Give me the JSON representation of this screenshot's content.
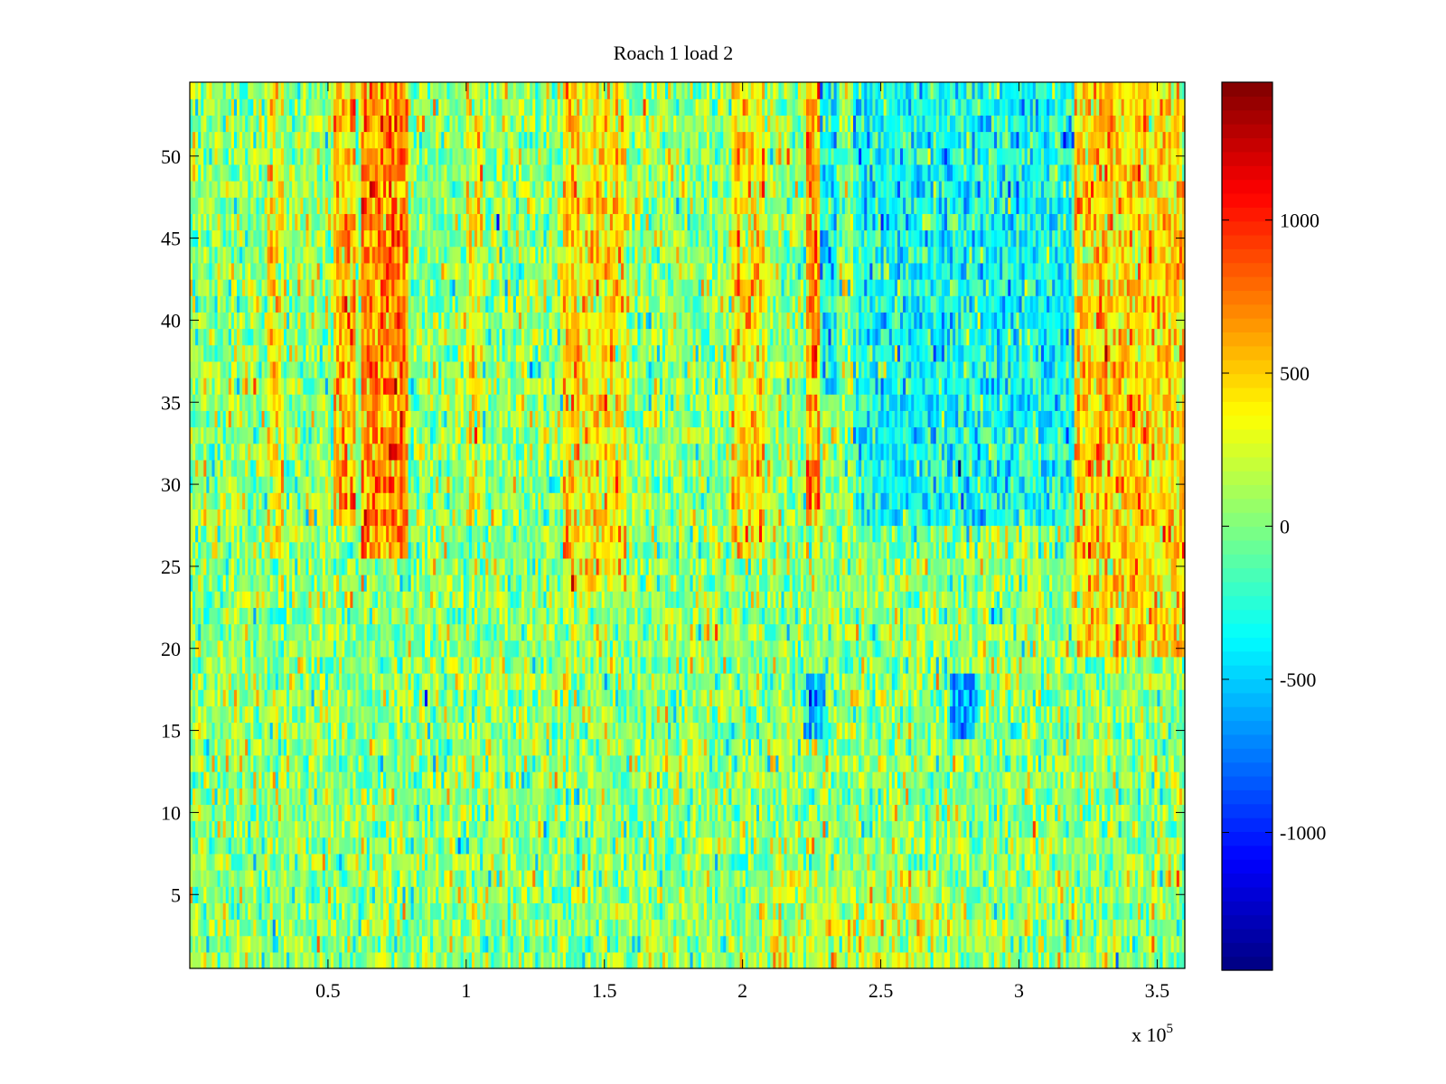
{
  "chart_data": {
    "type": "heatmap",
    "title": "Roach 1 load 2",
    "xlabel": "",
    "ylabel": "",
    "x_multiplier": "x 10",
    "x_multiplier_exponent": "5",
    "xlim": [
      0,
      360000
    ],
    "ylim": [
      0.5,
      54.5
    ],
    "x_ticks": [
      {
        "value": 50000,
        "label": "0.5"
      },
      {
        "value": 100000,
        "label": "1"
      },
      {
        "value": 150000,
        "label": "1.5"
      },
      {
        "value": 200000,
        "label": "2"
      },
      {
        "value": 250000,
        "label": "2.5"
      },
      {
        "value": 300000,
        "label": "3"
      },
      {
        "value": 350000,
        "label": "3.5"
      }
    ],
    "y_ticks": [
      {
        "value": 5,
        "label": "5"
      },
      {
        "value": 10,
        "label": "10"
      },
      {
        "value": 15,
        "label": "15"
      },
      {
        "value": 20,
        "label": "20"
      },
      {
        "value": 25,
        "label": "25"
      },
      {
        "value": 30,
        "label": "30"
      },
      {
        "value": 35,
        "label": "35"
      },
      {
        "value": 40,
        "label": "40"
      },
      {
        "value": 45,
        "label": "45"
      },
      {
        "value": 50,
        "label": "50"
      }
    ],
    "rows": 54,
    "colormap": "jet",
    "clim": [
      -1450,
      1450
    ],
    "colorbar": {
      "position": "right",
      "ticks": [
        {
          "value": -1000,
          "label": "-1000"
        },
        {
          "value": -500,
          "label": "-500"
        },
        {
          "value": 0,
          "label": "0"
        },
        {
          "value": 500,
          "label": "500"
        },
        {
          "value": 1000,
          "label": "1000"
        }
      ]
    },
    "bands": [
      {
        "x": [
          28000,
          34000
        ],
        "y": [
          26,
          54
        ],
        "value": 330
      },
      {
        "x": [
          52000,
          60000
        ],
        "y": [
          28,
          54
        ],
        "value": 520
      },
      {
        "x": [
          62000,
          79000
        ],
        "y": [
          26,
          54
        ],
        "value": 650
      },
      {
        "x": [
          100000,
          106000
        ],
        "y": [
          28,
          54
        ],
        "value": 300
      },
      {
        "x": [
          135000,
          158000
        ],
        "y": [
          24,
          54
        ],
        "value": 370
      },
      {
        "x": [
          196000,
          208000
        ],
        "y": [
          26,
          54
        ],
        "value": 380
      },
      {
        "x": [
          223000,
          228000
        ],
        "y": [
          28,
          54
        ],
        "value": 620
      },
      {
        "x": [
          228000,
          234000
        ],
        "y": [
          36,
          54
        ],
        "value": -420
      },
      {
        "x": [
          240000,
          320000
        ],
        "y": [
          28,
          54
        ],
        "value": -360
      },
      {
        "x": [
          320000,
          360000
        ],
        "y": [
          20,
          54
        ],
        "value": 420
      },
      {
        "x": [
          222000,
          230000
        ],
        "y": [
          15,
          18
        ],
        "value": -550
      },
      {
        "x": [
          275000,
          285000
        ],
        "y": [
          15,
          18
        ],
        "value": -650
      },
      {
        "x": [
          210000,
          275000
        ],
        "y": [
          0.5,
          6
        ],
        "value": 160
      }
    ],
    "background_mean": 40,
    "noise_amplitude": 430
  }
}
